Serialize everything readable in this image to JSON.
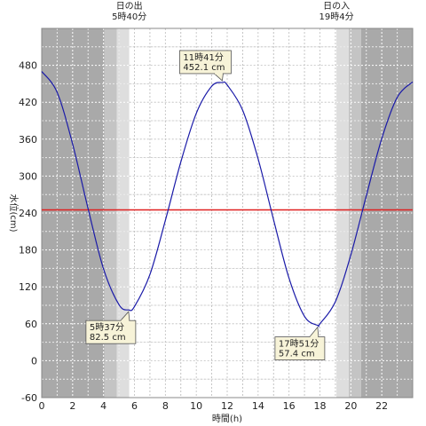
{
  "chart_data": {
    "type": "line",
    "xlabel": "時間(h)",
    "ylabel": "水位(cm)",
    "xlim": [
      0,
      24
    ],
    "ylim": [
      -60,
      540
    ],
    "x_ticks": [
      0,
      2,
      4,
      6,
      8,
      10,
      12,
      14,
      16,
      18,
      20,
      22
    ],
    "y_ticks": [
      -60,
      0,
      60,
      120,
      180,
      240,
      300,
      360,
      420,
      480
    ],
    "grid": true,
    "reference_line": {
      "y": 245,
      "color": "#e02020"
    },
    "series": [
      {
        "color": "#1a1aa8",
        "points": [
          [
            0,
            470
          ],
          [
            1,
            436
          ],
          [
            2,
            352
          ],
          [
            3,
            247
          ],
          [
            4,
            149
          ],
          [
            5,
            91
          ],
          [
            5.62,
            82.5
          ],
          [
            6,
            88
          ],
          [
            7,
            140
          ],
          [
            8,
            228
          ],
          [
            9,
            323
          ],
          [
            10,
            402
          ],
          [
            11,
            446
          ],
          [
            11.68,
            452.1
          ],
          [
            12,
            448
          ],
          [
            13,
            407
          ],
          [
            14,
            328
          ],
          [
            15,
            229
          ],
          [
            16,
            134
          ],
          [
            17,
            72
          ],
          [
            17.85,
            57.4
          ],
          [
            18,
            60
          ],
          [
            19,
            96
          ],
          [
            20,
            172
          ],
          [
            21,
            268
          ],
          [
            22,
            361
          ],
          [
            23,
            428
          ],
          [
            24,
            453
          ]
        ]
      }
    ],
    "annotations": [
      {
        "time": "5時37分",
        "value": "82.5 cm",
        "x": 5.62,
        "y": 82.5
      },
      {
        "time": "11時41分",
        "value": "452.1 cm",
        "x": 11.68,
        "y": 452.1
      },
      {
        "time": "17時51分",
        "value": "57.4 cm",
        "x": 17.85,
        "y": 57.4
      }
    ],
    "sunrise": {
      "label": "日の出",
      "time": "5時40分",
      "x": 5.667
    },
    "sunset": {
      "label": "日の入",
      "time": "19時4分",
      "x": 19.067
    },
    "colors": {
      "night": "#a9a9a9",
      "twilight_dark": "#c4c4c4",
      "twilight_light": "#dedede",
      "day": "#ffffff",
      "callout_bg": "#f7f3d8"
    }
  }
}
